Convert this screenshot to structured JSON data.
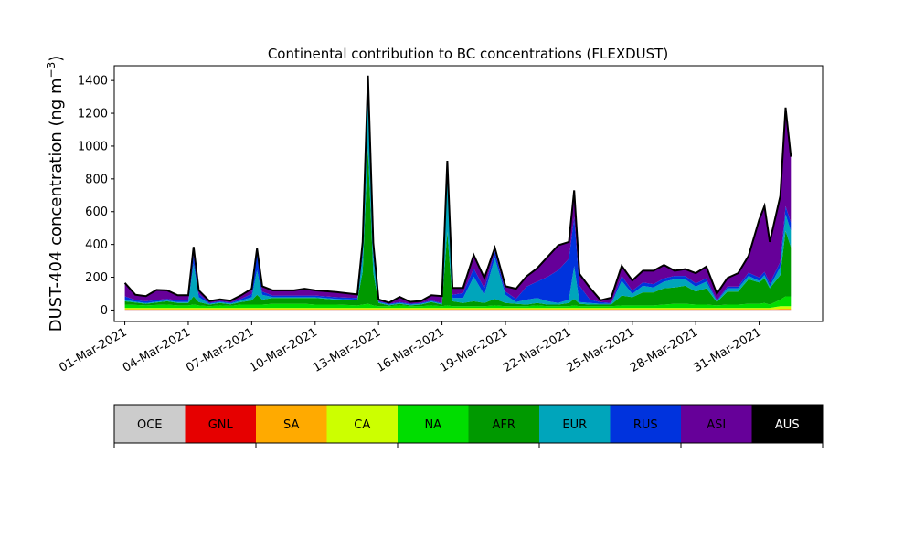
{
  "chart_data": {
    "type": "area",
    "stacked": true,
    "title": "Continental contribution to BC concentrations (FLEXDUST)",
    "ylabel_main": "DUST-404 concentration (ng m",
    "ylabel_sup": "−3",
    "ylabel_close": ")",
    "xlabel": "",
    "xlim": [
      "2021-02-28T12:00",
      "2021-04-03T00:00"
    ],
    "ylim": [
      -70,
      1490
    ],
    "yticks": [
      0,
      200,
      400,
      600,
      800,
      1000,
      1200,
      1400
    ],
    "ytick_labels": [
      "0",
      "200",
      "400",
      "600",
      "800",
      "1000",
      "1200",
      "1400"
    ],
    "xticks": [
      "2021-03-01",
      "2021-03-04",
      "2021-03-07",
      "2021-03-10",
      "2021-03-13",
      "2021-03-16",
      "2021-03-19",
      "2021-03-22",
      "2021-03-25",
      "2021-03-28",
      "2021-03-31"
    ],
    "xtick_labels": [
      "01-Mar-2021",
      "04-Mar-2021",
      "07-Mar-2021",
      "10-Mar-2021",
      "13-Mar-2021",
      "16-Mar-2021",
      "19-Mar-2021",
      "22-Mar-2021",
      "25-Mar-2021",
      "28-Mar-2021",
      "31-Mar-2021"
    ],
    "grid": false,
    "legend_placement": "below",
    "legend": [
      {
        "name": "OCE",
        "color": "#cccccc",
        "text_color": "#000000"
      },
      {
        "name": "GNL",
        "color": "#e60000",
        "text_color": "#000000"
      },
      {
        "name": "SA",
        "color": "#ffaa00",
        "text_color": "#000000"
      },
      {
        "name": "CA",
        "color": "#ccff00",
        "text_color": "#000000"
      },
      {
        "name": "NA",
        "color": "#00dd00",
        "text_color": "#000000"
      },
      {
        "name": "AFR",
        "color": "#009900",
        "text_color": "#000000"
      },
      {
        "name": "EUR",
        "color": "#00a5bb",
        "text_color": "#000000"
      },
      {
        "name": "RUS",
        "color": "#0033dd",
        "text_color": "#000000"
      },
      {
        "name": "ASI",
        "color": "#660099",
        "text_color": "#000000"
      },
      {
        "name": "AUS",
        "color": "#000000",
        "text_color": "#ffffff"
      }
    ],
    "x": [
      "2021-03-01T00:00",
      "2021-03-01T12:00",
      "2021-03-02T00:00",
      "2021-03-02T12:00",
      "2021-03-03T00:00",
      "2021-03-03T12:00",
      "2021-03-04T00:00",
      "2021-03-04T06:00",
      "2021-03-04T12:00",
      "2021-03-05T00:00",
      "2021-03-05T12:00",
      "2021-03-06T00:00",
      "2021-03-06T12:00",
      "2021-03-07T00:00",
      "2021-03-07T06:00",
      "2021-03-07T12:00",
      "2021-03-08T00:00",
      "2021-03-08T12:00",
      "2021-03-09T00:00",
      "2021-03-09T12:00",
      "2021-03-10T00:00",
      "2021-03-11T00:00",
      "2021-03-12T00:00",
      "2021-03-12T06:00",
      "2021-03-12T12:00",
      "2021-03-12T18:00",
      "2021-03-13T00:00",
      "2021-03-13T12:00",
      "2021-03-14T00:00",
      "2021-03-14T12:00",
      "2021-03-15T00:00",
      "2021-03-15T12:00",
      "2021-03-16T00:00",
      "2021-03-16T06:00",
      "2021-03-16T12:00",
      "2021-03-17T00:00",
      "2021-03-17T12:00",
      "2021-03-18T00:00",
      "2021-03-18T12:00",
      "2021-03-19T00:00",
      "2021-03-19T12:00",
      "2021-03-20T00:00",
      "2021-03-20T12:00",
      "2021-03-21T00:00",
      "2021-03-21T12:00",
      "2021-03-22T00:00",
      "2021-03-22T06:00",
      "2021-03-22T12:00",
      "2021-03-23T00:00",
      "2021-03-23T12:00",
      "2021-03-24T00:00",
      "2021-03-24T12:00",
      "2021-03-25T00:00",
      "2021-03-25T12:00",
      "2021-03-26T00:00",
      "2021-03-26T12:00",
      "2021-03-27T00:00",
      "2021-03-27T12:00",
      "2021-03-28T00:00",
      "2021-03-28T12:00",
      "2021-03-29T00:00",
      "2021-03-29T12:00",
      "2021-03-30T00:00",
      "2021-03-30T12:00",
      "2021-03-31T00:00",
      "2021-03-31T06:00",
      "2021-03-31T12:00",
      "2021-04-01T00:00",
      "2021-04-01T06:00",
      "2021-04-01T12:00"
    ],
    "series": [
      {
        "name": "OCE",
        "values": [
          2,
          2,
          2,
          2,
          2,
          2,
          2,
          2,
          2,
          2,
          2,
          2,
          2,
          2,
          2,
          2,
          2,
          2,
          2,
          2,
          2,
          2,
          2,
          2,
          2,
          2,
          2,
          2,
          2,
          2,
          2,
          2,
          2,
          2,
          2,
          2,
          2,
          2,
          2,
          2,
          2,
          2,
          2,
          2,
          2,
          2,
          2,
          2,
          2,
          2,
          2,
          2,
          2,
          2,
          2,
          2,
          2,
          2,
          2,
          2,
          2,
          2,
          2,
          2,
          2,
          2,
          2,
          2,
          2,
          2
        ]
      },
      {
        "name": "GNL",
        "values": [
          1,
          1,
          1,
          1,
          1,
          1,
          1,
          1,
          1,
          1,
          1,
          1,
          1,
          1,
          1,
          1,
          1,
          1,
          1,
          1,
          1,
          1,
          1,
          1,
          1,
          1,
          1,
          1,
          1,
          1,
          1,
          1,
          1,
          1,
          1,
          1,
          1,
          1,
          1,
          1,
          1,
          1,
          1,
          1,
          1,
          1,
          1,
          1,
          1,
          1,
          1,
          1,
          1,
          1,
          1,
          1,
          1,
          1,
          1,
          1,
          1,
          1,
          1,
          1,
          1,
          1,
          1,
          1,
          1,
          1
        ]
      },
      {
        "name": "SA",
        "values": [
          2,
          2,
          2,
          2,
          2,
          2,
          2,
          2,
          2,
          2,
          2,
          2,
          2,
          2,
          2,
          2,
          2,
          2,
          2,
          2,
          2,
          2,
          2,
          2,
          2,
          2,
          2,
          2,
          2,
          2,
          2,
          2,
          2,
          2,
          2,
          2,
          2,
          2,
          2,
          2,
          2,
          2,
          2,
          2,
          2,
          2,
          2,
          2,
          2,
          2,
          2,
          2,
          2,
          2,
          2,
          2,
          2,
          2,
          2,
          2,
          2,
          2,
          2,
          2,
          2,
          2,
          2,
          5,
          5,
          5
        ]
      },
      {
        "name": "CA",
        "values": [
          8,
          8,
          8,
          8,
          8,
          8,
          8,
          8,
          8,
          8,
          8,
          8,
          8,
          8,
          8,
          8,
          8,
          8,
          8,
          8,
          8,
          8,
          8,
          8,
          8,
          8,
          8,
          8,
          8,
          8,
          8,
          8,
          8,
          8,
          8,
          8,
          8,
          8,
          8,
          8,
          8,
          8,
          8,
          8,
          8,
          8,
          8,
          8,
          8,
          8,
          8,
          8,
          8,
          8,
          8,
          8,
          8,
          8,
          8,
          8,
          8,
          8,
          8,
          8,
          8,
          8,
          8,
          15,
          15,
          15
        ]
      },
      {
        "name": "NA",
        "values": [
          20,
          18,
          15,
          18,
          20,
          15,
          15,
          20,
          15,
          10,
          15,
          12,
          20,
          20,
          20,
          20,
          25,
          25,
          25,
          25,
          20,
          20,
          15,
          20,
          25,
          15,
          10,
          10,
          15,
          10,
          10,
          15,
          10,
          15,
          10,
          10,
          10,
          10,
          15,
          10,
          10,
          10,
          15,
          10,
          10,
          10,
          15,
          10,
          10,
          10,
          10,
          15,
          15,
          15,
          15,
          20,
          25,
          25,
          20,
          20,
          15,
          20,
          20,
          25,
          25,
          30,
          20,
          40,
          60,
          60
        ]
      },
      {
        "name": "AFR",
        "values": [
          20,
          15,
          10,
          15,
          20,
          15,
          15,
          50,
          20,
          10,
          15,
          10,
          15,
          25,
          60,
          30,
          35,
          35,
          35,
          35,
          40,
          30,
          30,
          200,
          950,
          200,
          20,
          5,
          10,
          5,
          10,
          20,
          10,
          450,
          30,
          20,
          30,
          20,
          40,
          20,
          15,
          10,
          15,
          10,
          10,
          20,
          40,
          15,
          10,
          10,
          10,
          60,
          50,
          80,
          80,
          100,
          100,
          110,
          80,
          100,
          20,
          80,
          80,
          150,
          130,
          150,
          100,
          150,
          400,
          300
        ]
      },
      {
        "name": "EUR",
        "values": [
          10,
          5,
          5,
          5,
          5,
          5,
          5,
          200,
          30,
          5,
          5,
          5,
          10,
          20,
          150,
          30,
          5,
          5,
          5,
          5,
          5,
          5,
          5,
          100,
          300,
          100,
          5,
          5,
          5,
          5,
          5,
          5,
          5,
          400,
          20,
          30,
          150,
          50,
          250,
          50,
          10,
          30,
          30,
          20,
          10,
          20,
          200,
          10,
          10,
          5,
          5,
          90,
          20,
          40,
          30,
          40,
          50,
          40,
          30,
          40,
          5,
          20,
          20,
          20,
          10,
          20,
          10,
          50,
          100,
          100
        ]
      },
      {
        "name": "RUS",
        "values": [
          20,
          10,
          10,
          10,
          10,
          10,
          10,
          50,
          20,
          5,
          5,
          5,
          10,
          20,
          100,
          20,
          10,
          10,
          10,
          10,
          10,
          10,
          10,
          30,
          60,
          30,
          5,
          5,
          5,
          5,
          5,
          5,
          5,
          20,
          20,
          30,
          50,
          40,
          40,
          20,
          20,
          80,
          100,
          150,
          200,
          250,
          300,
          100,
          20,
          10,
          5,
          30,
          20,
          20,
          20,
          20,
          20,
          20,
          20,
          20,
          5,
          10,
          10,
          20,
          20,
          20,
          20,
          30,
          50,
          50
        ]
      },
      {
        "name": "ASI",
        "values": [
          80,
          30,
          30,
          60,
          50,
          30,
          30,
          50,
          20,
          10,
          10,
          10,
          20,
          30,
          30,
          30,
          30,
          30,
          30,
          40,
          30,
          30,
          20,
          50,
          80,
          50,
          10,
          5,
          30,
          10,
          10,
          30,
          40,
          10,
          40,
          30,
          80,
          60,
          20,
          30,
          60,
          60,
          80,
          120,
          150,
          100,
          160,
          70,
          70,
          10,
          30,
          60,
          60,
          70,
          80,
          80,
          30,
          40,
          60,
          70,
          40,
          50,
          80,
          100,
          350,
          400,
          250,
          400,
          600,
          400
        ]
      },
      {
        "name": "AUS",
        "values": [
          2,
          2,
          2,
          2,
          2,
          2,
          2,
          2,
          2,
          2,
          2,
          2,
          2,
          2,
          2,
          2,
          2,
          2,
          2,
          2,
          2,
          2,
          2,
          2,
          2,
          2,
          2,
          2,
          2,
          2,
          2,
          2,
          2,
          2,
          2,
          2,
          2,
          2,
          2,
          2,
          2,
          2,
          2,
          2,
          2,
          2,
          2,
          2,
          2,
          2,
          2,
          2,
          2,
          2,
          2,
          2,
          2,
          2,
          2,
          2,
          2,
          2,
          2,
          2,
          2,
          2,
          2,
          2,
          2,
          2
        ]
      }
    ]
  }
}
